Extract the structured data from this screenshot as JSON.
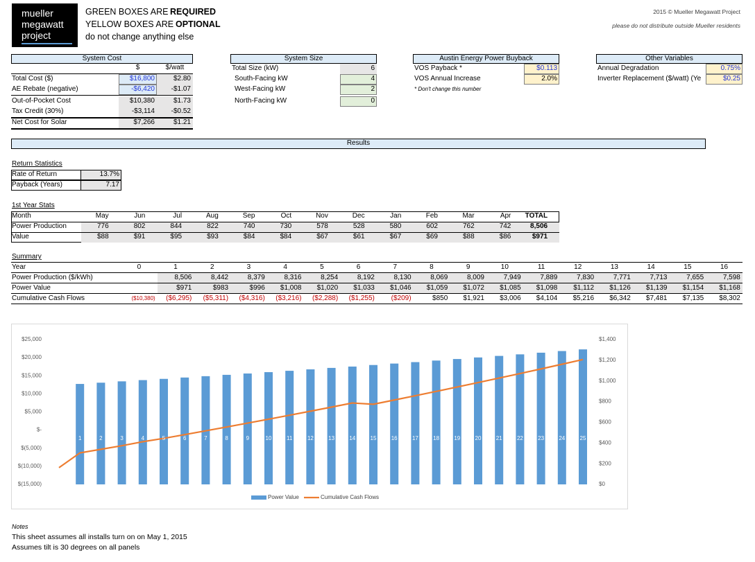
{
  "header": {
    "logo": [
      "mueller",
      "megawatt",
      "project"
    ],
    "instructions": [
      {
        "text": "GREEN BOXES ARE",
        "strong": "REQUIRED"
      },
      {
        "text": "YELLOW BOXES ARE",
        "strong": "OPTIONAL"
      },
      {
        "text": "do not change anything else"
      }
    ],
    "copyright": "2015 © Mueller Megawatt Project",
    "notice": "please do not distribute outside Mueller residents"
  },
  "system_cost": {
    "title": "System Cost",
    "columns": [
      "$",
      "$/watt"
    ],
    "rows": [
      [
        "Total Cost ($)",
        "$16,800",
        "$2.80"
      ],
      [
        "AE Rebate (negative)",
        "-$6,420",
        "-$1.07"
      ],
      [
        "Out-of-Pocket Cost",
        "$10,380",
        "$1.73"
      ],
      [
        "Tax Credit (30%)",
        "-$3,114",
        "-$0.52"
      ],
      [
        "Net Cost for Solar",
        "$7,266",
        "$1.21"
      ]
    ]
  },
  "system_size": {
    "title": "System Size",
    "rows": [
      [
        "Total Size (kW)",
        "6"
      ],
      [
        "South-Facing kW",
        "4"
      ],
      [
        "West-Facing kW",
        "2"
      ],
      [
        "North-Facing kW",
        "0"
      ]
    ]
  },
  "buyback": {
    "title": "Austin Energy Power Buyback",
    "rows": [
      [
        "VOS Payback *",
        "$0.113"
      ],
      [
        "VOS Annual Increase",
        "2.0%"
      ]
    ],
    "footnote": "* Don't change this number"
  },
  "other_variables": {
    "title": "Other Variables",
    "rows": [
      [
        "Annual Degradation",
        "0.75%"
      ],
      [
        "Inverter Replacement ($/watt) (Ye",
        "$0.25"
      ]
    ]
  },
  "results": {
    "title": "Results"
  },
  "return_statistics": {
    "title": "Return Statistics",
    "rows": [
      [
        "Rate of Return",
        "13.7%"
      ],
      [
        "Payback (Years)",
        "7.17"
      ]
    ]
  },
  "first_year_stats": {
    "title": "1st Year Stats",
    "rows": [
      [
        "Month",
        "May",
        "Jun",
        "Jul",
        "Aug",
        "Sep",
        "Oct",
        "Nov",
        "Dec",
        "Jan",
        "Feb",
        "Mar",
        "Apr",
        "TOTAL"
      ],
      [
        "Power Production",
        "776",
        "802",
        "844",
        "822",
        "740",
        "730",
        "578",
        "528",
        "580",
        "602",
        "762",
        "742",
        "8,506"
      ],
      [
        "Value",
        "$88",
        "$91",
        "$95",
        "$93",
        "$84",
        "$84",
        "$67",
        "$61",
        "$67",
        "$69",
        "$88",
        "$86",
        "$971"
      ]
    ]
  },
  "summary": {
    "title": "Summary",
    "rows": [
      [
        "Year",
        "0",
        "1",
        "2",
        "3",
        "4",
        "5",
        "6",
        "7",
        "8",
        "9",
        "10",
        "11",
        "12",
        "13",
        "14",
        "15",
        "16"
      ],
      [
        "Power Production ($/kWh)",
        null,
        "8,506",
        "8,442",
        "8,379",
        "8,316",
        "8,254",
        "8,192",
        "8,130",
        "8,069",
        "8,009",
        "7,949",
        "7,889",
        "7,830",
        "7,771",
        "7,713",
        "7,655",
        "7,598"
      ],
      [
        "Power Value",
        null,
        "$971",
        "$983",
        "$996",
        "$1,008",
        "$1,020",
        "$1,033",
        "$1,046",
        "$1,059",
        "$1,072",
        "$1,085",
        "$1,098",
        "$1,112",
        "$1,126",
        "$1,139",
        "$1,154",
        "$1,168"
      ],
      [
        "Cumulative Cash Flows",
        "($10,380)",
        "($6,295)",
        "($5,311)",
        "($4,316)",
        "($3,216)",
        "($2,288)",
        "($1,255)",
        "($209)",
        "$850",
        "$1,921",
        "$3,006",
        "$4,104",
        "$5,216",
        "$6,342",
        "$7,481",
        "$7,135",
        "$8,302"
      ]
    ]
  },
  "chart_data": {
    "type": "bar-line",
    "categories": [
      null,
      "1",
      "2",
      "3",
      "4",
      "5",
      "6",
      "7",
      "8",
      "9",
      "10",
      "11",
      "12",
      "13",
      "14",
      "15",
      "16",
      "17",
      "18",
      "19",
      "20",
      "21",
      "22",
      "23",
      "24",
      "25"
    ],
    "series": [
      {
        "name": "Power Value",
        "type": "bar",
        "axis": "y2",
        "color": "#5b9bd5",
        "values": [
          null,
          971,
          983,
          996,
          1008,
          1020,
          1033,
          1046,
          1059,
          1072,
          1085,
          1098,
          1112,
          1126,
          1139,
          1154,
          1168,
          1182,
          1197,
          1212,
          1227,
          1242,
          1257,
          1273,
          1289,
          1305
        ]
      },
      {
        "name": "Cumulative Cash Flows",
        "type": "line",
        "axis": "y",
        "color": "#ed7d31",
        "values": [
          -10380,
          -6295,
          -5311,
          -4316,
          -3216,
          -2288,
          -1255,
          -209,
          850,
          1921,
          3006,
          4104,
          5216,
          6342,
          7481,
          7135,
          8302,
          9484,
          10681,
          11893,
          13120,
          14362,
          15619,
          16892,
          18181,
          19486
        ]
      }
    ],
    "ylim": [
      -15000,
      25000
    ],
    "yticks": [
      {
        "value": 25000,
        "label": "$25,000"
      },
      {
        "value": 20000,
        "label": "$20,000"
      },
      {
        "value": 15000,
        "label": "$15,000"
      },
      {
        "value": 10000,
        "label": "$10,000"
      },
      {
        "value": 5000,
        "label": "$5,000"
      },
      {
        "value": 0,
        "label": "$-"
      },
      {
        "value": -5000,
        "label": "$(5,000)"
      },
      {
        "value": -10000,
        "label": "$(10,000)"
      },
      {
        "value": -15000,
        "label": "$(15,000)"
      }
    ],
    "y2lim": [
      0,
      1400
    ],
    "y2ticks": [
      {
        "value": 1400,
        "label": "$1,400"
      },
      {
        "value": 1200,
        "label": "$1,200"
      },
      {
        "value": 1000,
        "label": "$1,000"
      },
      {
        "value": 800,
        "label": "$800"
      },
      {
        "value": 600,
        "label": "$600"
      },
      {
        "value": 400,
        "label": "$400"
      },
      {
        "value": 200,
        "label": "$200"
      },
      {
        "value": 0,
        "label": "$0"
      }
    ],
    "legend": "bottom"
  },
  "notes": {
    "title": "Notes",
    "lines": [
      "This sheet assumes all installs turn on on May 1, 2015",
      "Assumes tilt is 30 degrees on all panels"
    ]
  }
}
